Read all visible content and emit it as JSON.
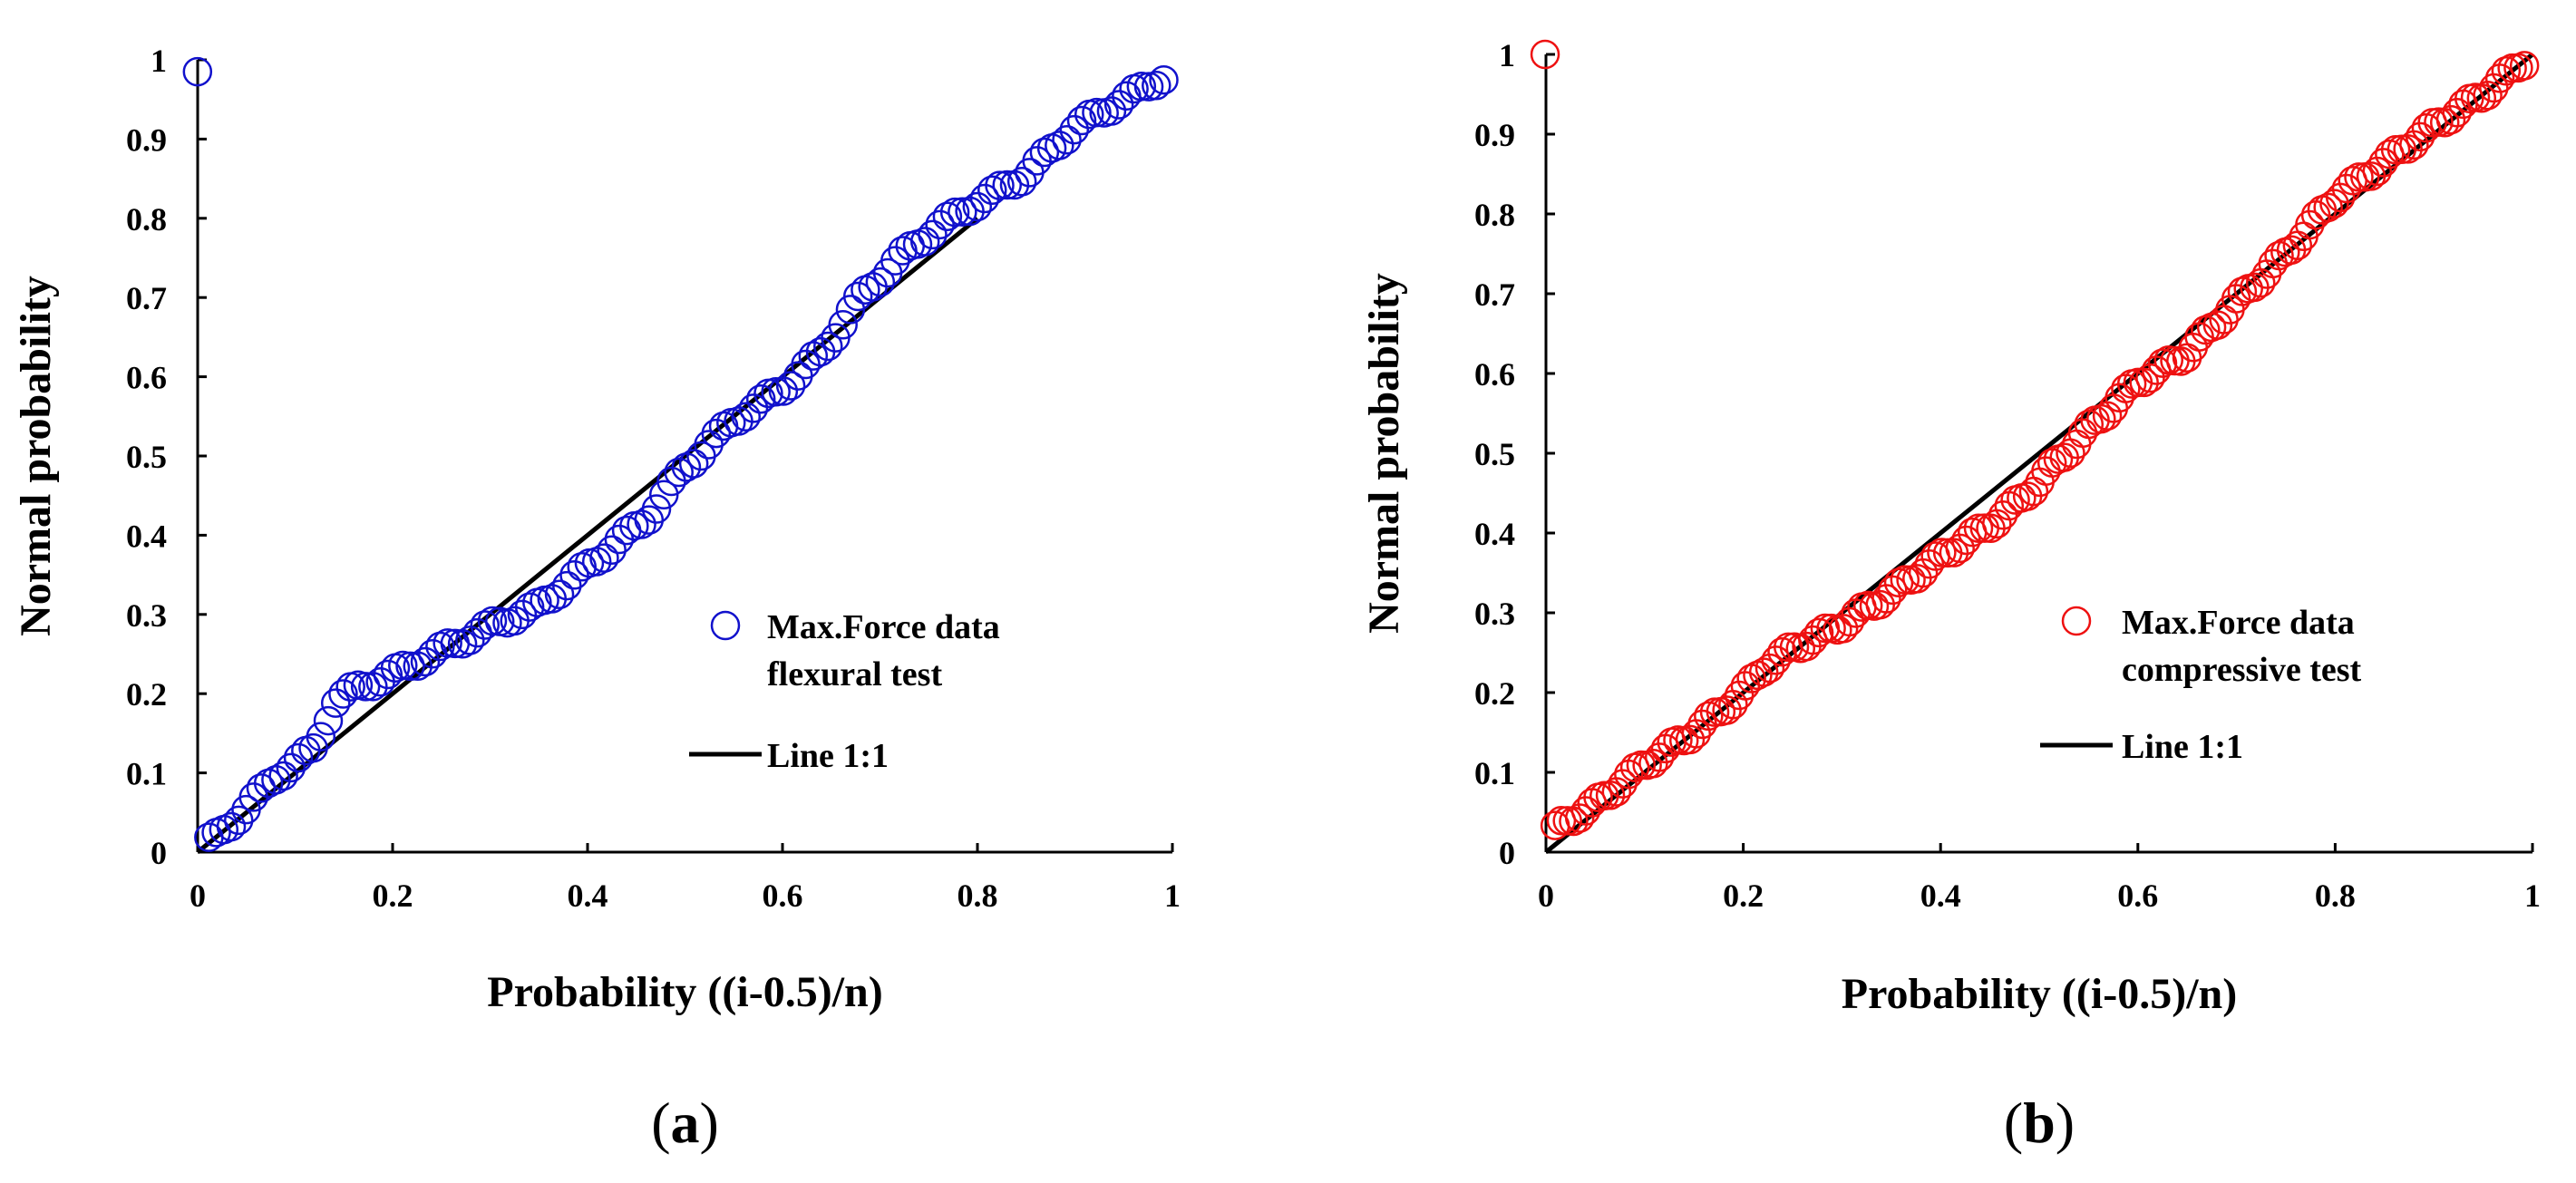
{
  "chart_data": [
    {
      "type": "scatter",
      "panel_label": {
        "open": "(",
        "letter": "a",
        "close": ")"
      },
      "xlabel": "Probability ((i-0.5)/n)",
      "ylabel": "Normal probability",
      "xlim": [
        0,
        1
      ],
      "ylim": [
        0,
        1
      ],
      "x_ticks": [
        "0",
        "0.2",
        "0.4",
        "0.6",
        "0.8",
        "1"
      ],
      "y_ticks": [
        "0",
        "0.1",
        "0.2",
        "0.3",
        "0.4",
        "0.5",
        "0.6",
        "0.7",
        "0.8",
        "0.9",
        "1"
      ],
      "color": "#1111cc",
      "series": [
        {
          "name": "Max.Force data flexural test",
          "legend_lines": [
            "Max.Force data",
            "flexural test"
          ],
          "marker": "open-circle",
          "curve": [
            [
              0,
              0.005
            ],
            [
              0.02,
              0.02
            ],
            [
              0.05,
              0.055
            ],
            [
              0.08,
              0.095
            ],
            [
              0.12,
              0.13
            ],
            [
              0.14,
              0.19
            ],
            [
              0.16,
              0.205
            ],
            [
              0.2,
              0.225
            ],
            [
              0.25,
              0.255
            ],
            [
              0.3,
              0.285
            ],
            [
              0.35,
              0.31
            ],
            [
              0.38,
              0.34
            ],
            [
              0.43,
              0.39
            ],
            [
              0.46,
              0.42
            ],
            [
              0.5,
              0.485
            ],
            [
              0.55,
              0.545
            ],
            [
              0.6,
              0.585
            ],
            [
              0.64,
              0.63
            ],
            [
              0.68,
              0.7
            ],
            [
              0.72,
              0.75
            ],
            [
              0.76,
              0.79
            ],
            [
              0.8,
              0.82
            ],
            [
              0.85,
              0.855
            ],
            [
              0.9,
              0.915
            ],
            [
              0.95,
              0.95
            ],
            [
              1,
              0.985
            ]
          ],
          "n_points": 130
        },
        {
          "name": "Line 1:1",
          "legend_lines": [
            "Line 1:1"
          ],
          "marker": "line",
          "x": [
            0,
            0.8
          ],
          "y": [
            0,
            0.8
          ]
        }
      ]
    },
    {
      "type": "scatter",
      "panel_label": {
        "open": "(",
        "letter": "b",
        "close": ")"
      },
      "xlabel": "Probability ((i-0.5)/n)",
      "ylabel": "Normal probability",
      "xlim": [
        0,
        1
      ],
      "ylim": [
        0,
        1
      ],
      "x_ticks": [
        "0",
        "0.2",
        "0.4",
        "0.6",
        "0.8",
        "1"
      ],
      "y_ticks": [
        "0",
        "0.1",
        "0.2",
        "0.3",
        "0.4",
        "0.5",
        "0.6",
        "0.7",
        "0.8",
        "0.9",
        "1"
      ],
      "color": "#ee1111",
      "series": [
        {
          "name": "Max.Force data compressive test",
          "legend_lines": [
            "Max.Force data",
            "compressive test"
          ],
          "marker": "open-circle",
          "curve": [
            [
              0,
              0.005
            ],
            [
              0.01,
              0.03
            ],
            [
              0.05,
              0.06
            ],
            [
              0.1,
              0.11
            ],
            [
              0.15,
              0.15
            ],
            [
              0.2,
              0.2
            ],
            [
              0.22,
              0.23
            ],
            [
              0.25,
              0.255
            ],
            [
              0.3,
              0.285
            ],
            [
              0.35,
              0.325
            ],
            [
              0.4,
              0.37
            ],
            [
              0.45,
              0.41
            ],
            [
              0.48,
              0.44
            ],
            [
              0.5,
              0.465
            ],
            [
              0.55,
              0.53
            ],
            [
              0.6,
              0.59
            ],
            [
              0.65,
              0.625
            ],
            [
              0.7,
              0.69
            ],
            [
              0.75,
              0.75
            ],
            [
              0.8,
              0.82
            ],
            [
              0.85,
              0.865
            ],
            [
              0.9,
              0.91
            ],
            [
              0.95,
              0.95
            ],
            [
              1,
              1
            ]
          ],
          "n_points": 160
        },
        {
          "name": "Line 1:1",
          "legend_lines": [
            "Line 1:1"
          ],
          "marker": "line",
          "x": [
            0,
            1
          ],
          "y": [
            0,
            1
          ]
        }
      ]
    }
  ]
}
